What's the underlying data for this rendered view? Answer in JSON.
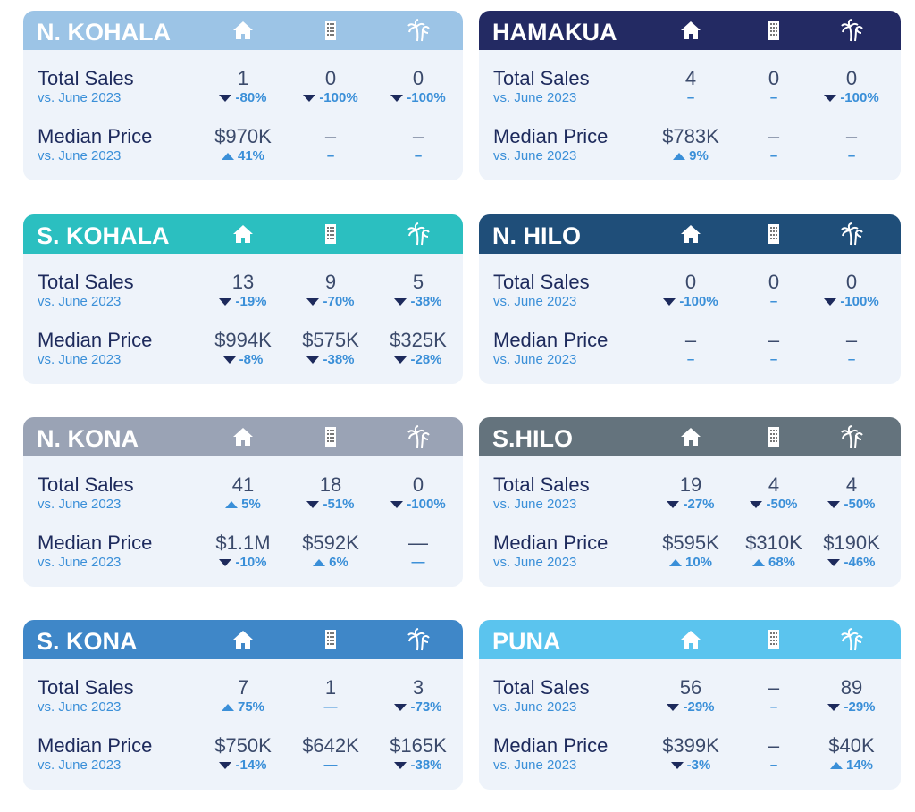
{
  "cards": [
    {
      "title": "N. KOHALA",
      "color": "#9cc4e6",
      "rows": [
        {
          "label": "Total Sales",
          "sub": "vs. June 2023",
          "values": [
            "1",
            "0",
            "0"
          ],
          "changes": [
            "-80%",
            "-100%",
            "-100%"
          ]
        },
        {
          "label": "Median Price",
          "sub": "vs. June 2023",
          "values": [
            "$970K",
            "–",
            "–"
          ],
          "changes": [
            "41%",
            "–",
            "–"
          ]
        }
      ]
    },
    {
      "title": "HAMAKUA",
      "color": "#232a63",
      "rows": [
        {
          "label": "Total Sales",
          "sub": "vs. June 2023",
          "values": [
            "4",
            "0",
            "0"
          ],
          "changes": [
            "–",
            "–",
            "-100%"
          ]
        },
        {
          "label": "Median Price",
          "sub": "vs. June 2023",
          "values": [
            "$783K",
            "–",
            "–"
          ],
          "changes": [
            "9%",
            "–",
            "–"
          ]
        }
      ]
    },
    {
      "title": "S. KOHALA",
      "color": "#2bbfc0",
      "rows": [
        {
          "label": "Total Sales",
          "sub": "vs. June 2023",
          "values": [
            "13",
            "9",
            "5"
          ],
          "changes": [
            "-19%",
            "-70%",
            "-38%"
          ]
        },
        {
          "label": "Median Price",
          "sub": "vs. June 2023",
          "values": [
            "$994K",
            "$575K",
            "$325K"
          ],
          "changes": [
            "-8%",
            "-38%",
            "-28%"
          ]
        }
      ]
    },
    {
      "title": "N. HILO",
      "color": "#1f4e79",
      "rows": [
        {
          "label": "Total Sales",
          "sub": "vs. June 2023",
          "values": [
            "0",
            "0",
            "0"
          ],
          "changes": [
            "-100%",
            "–",
            "-100%"
          ]
        },
        {
          "label": "Median Price",
          "sub": "vs. June 2023",
          "values": [
            "–",
            "–",
            "–"
          ],
          "changes": [
            "–",
            "–",
            "–"
          ]
        }
      ]
    },
    {
      "title": "N. KONA",
      "color": "#9aa3b5",
      "rows": [
        {
          "label": "Total Sales",
          "sub": "vs. June 2023",
          "values": [
            "41",
            "18",
            "0"
          ],
          "changes": [
            "5%",
            "-51%",
            "-100%"
          ]
        },
        {
          "label": "Median Price",
          "sub": "vs. June 2023",
          "values": [
            "$1.1M",
            "$592K",
            "—"
          ],
          "changes": [
            "-10%",
            "6%",
            "—"
          ]
        }
      ]
    },
    {
      "title": "S.HILO",
      "color": "#64737d",
      "rows": [
        {
          "label": "Total Sales",
          "sub": "vs. June 2023",
          "values": [
            "19",
            "4",
            "4"
          ],
          "changes": [
            "-27%",
            "-50%",
            "-50%"
          ]
        },
        {
          "label": "Median Price",
          "sub": "vs. June 2023",
          "values": [
            "$595K",
            "$310K",
            "$190K"
          ],
          "changes": [
            "10%",
            "68%",
            "-46%"
          ]
        }
      ]
    },
    {
      "title": "S. KONA",
      "color": "#3f87c8",
      "rows": [
        {
          "label": "Total Sales",
          "sub": "vs. June 2023",
          "values": [
            "7",
            "1",
            "3"
          ],
          "changes": [
            "75%",
            "—",
            "-73%"
          ]
        },
        {
          "label": "Median Price",
          "sub": "vs. June 2023",
          "values": [
            "$750K",
            "$642K",
            "$165K"
          ],
          "changes": [
            "-14%",
            "—",
            "-38%"
          ]
        }
      ]
    },
    {
      "title": "PUNA",
      "color": "#5bc4ee",
      "rows": [
        {
          "label": "Total Sales",
          "sub": "vs. June 2023",
          "values": [
            "56",
            "–",
            "89"
          ],
          "changes": [
            "-29%",
            "–",
            "-29%"
          ]
        },
        {
          "label": "Median Price",
          "sub": "vs. June 2023",
          "values": [
            "$399K",
            "–",
            "$40K"
          ],
          "changes": [
            "-3%",
            "–",
            "14%"
          ]
        }
      ]
    }
  ]
}
